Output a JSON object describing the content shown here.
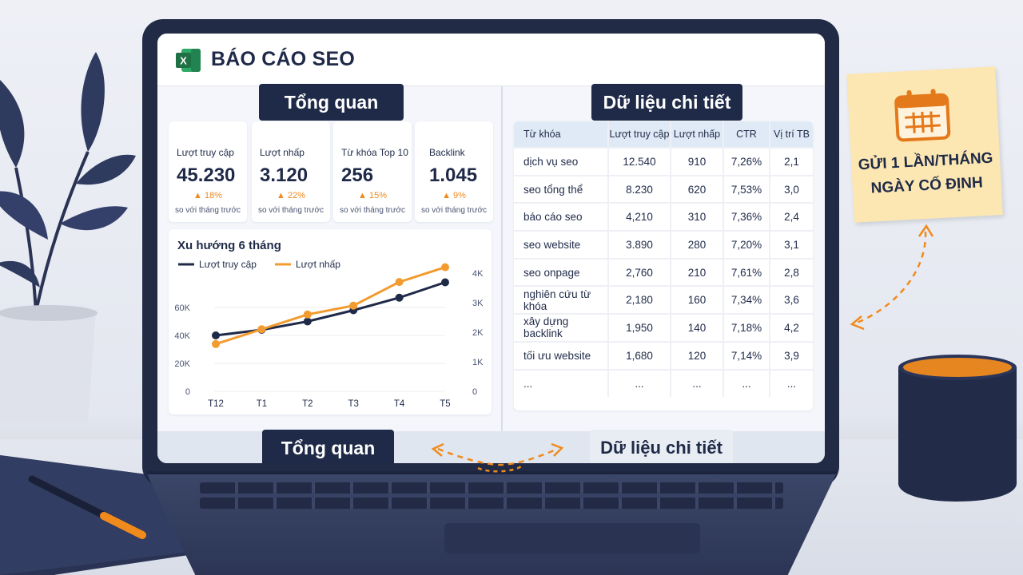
{
  "app": {
    "title": "BÁO CÁO SEO"
  },
  "sections": {
    "overview": "Tổng quan",
    "details": "Dữ liệu chi tiết"
  },
  "kpis": [
    {
      "label": "Lượt truy cập",
      "value": "45.230",
      "change": "18%",
      "note": "so với tháng trước"
    },
    {
      "label": "Lượt nhấp",
      "value": "3.120",
      "change": "22%",
      "note": "so với tháng trước"
    },
    {
      "label": "Từ khóa Top 10",
      "value": "256",
      "change": "15%",
      "note": "so với tháng trước"
    },
    {
      "label": "Backlink",
      "value": "1.045",
      "change": "9%",
      "note": "so với tháng trước"
    }
  ],
  "chart_data": {
    "type": "line",
    "title": "Xu hướng 6 tháng",
    "categories": [
      "T12",
      "T1",
      "T2",
      "T3",
      "T4",
      "T5"
    ],
    "series": [
      {
        "name": "Lượt truy cập",
        "axis": "left",
        "values": [
          40000,
          44000,
          50000,
          58000,
          67000,
          78000
        ]
      },
      {
        "name": "Lượt nhấp",
        "axis": "right",
        "values": [
          1600,
          2100,
          2600,
          2900,
          3700,
          4200
        ]
      }
    ],
    "y_left_ticks": [
      "0",
      "20K",
      "40K",
      "60K"
    ],
    "y_right_ticks": [
      "0",
      "1K",
      "2K",
      "3K",
      "4K"
    ],
    "y_left_range": [
      0,
      60000
    ],
    "y_right_range": [
      0,
      4000
    ],
    "legend_position": "top-left",
    "grid": true,
    "colors": {
      "Lượt truy cập": "#1f2a48",
      "Lượt nhấp": "#f29b2e"
    }
  },
  "table": {
    "headers": [
      "Từ khóa",
      "Lượt truy cập",
      "Lượt nhấp",
      "CTR",
      "Vị trí TB"
    ],
    "rows": [
      [
        "dịch vụ seo",
        "12.540",
        "910",
        "7,26%",
        "2,1"
      ],
      [
        "seo tổng thể",
        "8.230",
        "620",
        "7,53%",
        "3,0"
      ],
      [
        "báo cáo seo",
        "4,210",
        "310",
        "7,36%",
        "2,4"
      ],
      [
        "seo website",
        "3.890",
        "280",
        "7,20%",
        "3,1"
      ],
      [
        "seo onpage",
        "2,760",
        "210",
        "7,61%",
        "2,8"
      ],
      [
        "nghiên cứu từ khóa",
        "2,180",
        "160",
        "7,34%",
        "3,6"
      ],
      [
        "xây dựng backlink",
        "1,950",
        "140",
        "7,18%",
        "4,2"
      ],
      [
        "tối ưu website",
        "1,680",
        "120",
        "7,14%",
        "3,9"
      ],
      [
        "...",
        "...",
        "...",
        "...",
        "..."
      ]
    ]
  },
  "tabs": {
    "active": "Tổng quan",
    "inactive": "Dữ liệu chi tiết"
  },
  "sticky_note": {
    "line1": "GỬI 1 LẦN/THÁNG",
    "line2": "NGÀY CỐ ĐỊNH",
    "icon": "calendar-icon"
  },
  "colors": {
    "navy": "#1f2a48",
    "accent": "#f08a1c",
    "excel_green": "#1e7145"
  }
}
